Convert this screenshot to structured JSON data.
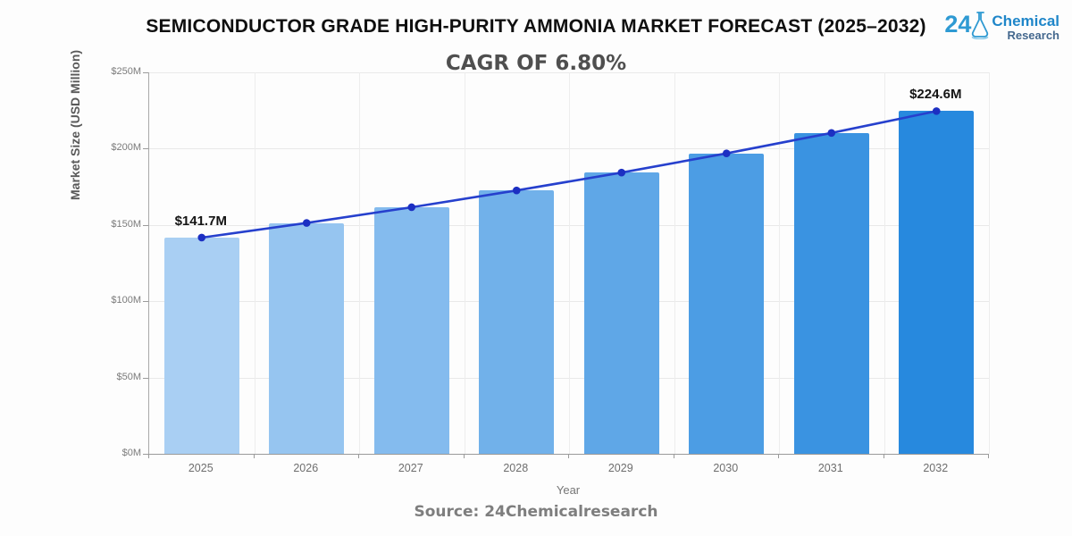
{
  "header": {
    "title": "SEMICONDUCTOR GRADE HIGH-PURITY AMMONIA MARKET FORECAST (2025–2032)",
    "subtitle": "CAGR OF 6.80%"
  },
  "logo": {
    "number": "24",
    "line1": "Chemical",
    "line2": "Research",
    "icon": "flask-icon",
    "accent_color": "#2e9ad3"
  },
  "chart_data": {
    "type": "bar",
    "overlay": "line",
    "title": "SEMICONDUCTOR GRADE HIGH-PURITY AMMONIA MARKET FORECAST (2025–2032)",
    "subtitle": "CAGR OF 6.80%",
    "categories": [
      "2025",
      "2026",
      "2027",
      "2028",
      "2029",
      "2030",
      "2031",
      "2032"
    ],
    "values": [
      141.7,
      151.3,
      161.6,
      172.6,
      184.3,
      196.9,
      210.3,
      224.6
    ],
    "xlabel": "Year",
    "ylabel": "Market Size (USD Million)",
    "ylim": [
      0,
      250
    ],
    "yticks": [
      {
        "value": 0,
        "label": "$0M"
      },
      {
        "value": 50,
        "label": "$50M"
      },
      {
        "value": 100,
        "label": "$100M"
      },
      {
        "value": 150,
        "label": "$150M"
      },
      {
        "value": 200,
        "label": "$200M"
      },
      {
        "value": 250,
        "label": "$250M"
      }
    ],
    "annotations": [
      {
        "index": 0,
        "label": "$141.7M"
      },
      {
        "index": 7,
        "label": "$224.6M"
      }
    ],
    "bar_colors": [
      "#a9cff3",
      "#96c5f0",
      "#84bbee",
      "#71b1ea",
      "#5fa7e7",
      "#4c9de4",
      "#3a93e1",
      "#2789de"
    ],
    "line_color": "#2640cd",
    "dot_color": "#1c2fc2",
    "grid": true,
    "legend": false
  },
  "footer": {
    "source": "Source: 24Chemicalresearch"
  }
}
